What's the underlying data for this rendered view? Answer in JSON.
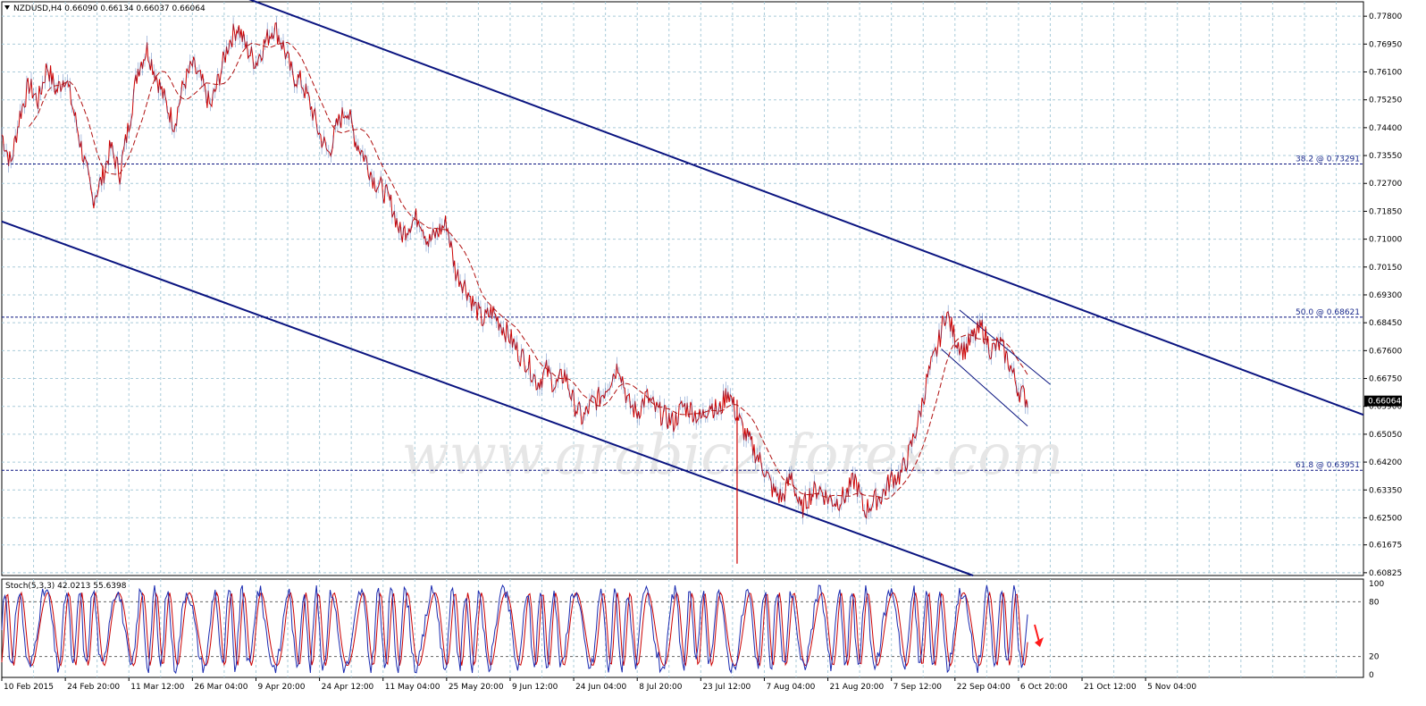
{
  "chart_data": {
    "type": "line",
    "symbol": "NZDUSD",
    "timeframe": "H4",
    "ohlc_header": "NZDUSD,H4  0.66090 0.66134 0.66037 0.66064",
    "current_price": "0.66064",
    "watermark": "www.arabic2.forex.com",
    "ylim": [
      0.6074,
      0.7824
    ],
    "y_ticks": [
      "0.77800",
      "0.76950",
      "0.76100",
      "0.75250",
      "0.74400",
      "0.73550",
      "0.72700",
      "0.71850",
      "0.71000",
      "0.70150",
      "0.69300",
      "0.68450",
      "0.67600",
      "0.66750",
      "0.65900",
      "0.65050",
      "0.64200",
      "0.63350",
      "0.62500",
      "0.61675",
      "0.60825"
    ],
    "x_ticks": [
      "10 Feb 2015",
      "24 Feb 20:00",
      "11 Mar 12:00",
      "26 Mar 04:00",
      "9 Apr 20:00",
      "24 Apr 12:00",
      "11 May 04:00",
      "25 May 20:00",
      "9 Jun 12:00",
      "24 Jun 04:00",
      "8 Jul 20:00",
      "23 Jul 12:00",
      "7 Aug 04:00",
      "21 Aug 20:00",
      "7 Sep 12:00",
      "22 Sep 04:00",
      "6 Oct 20:00",
      "21 Oct 12:00",
      "5 Nov 04:00"
    ],
    "fib_levels": [
      {
        "label": "38.2 @ 0.73291",
        "value": 0.73291
      },
      {
        "label": "50.0 @ 0.68621",
        "value": 0.68621
      },
      {
        "label": "61.8 @ 0.63951",
        "value": 0.63951
      }
    ],
    "price_series": [
      [
        0,
        0.742
      ],
      [
        2,
        0.733
      ],
      [
        4,
        0.748
      ],
      [
        6,
        0.757
      ],
      [
        8,
        0.752
      ],
      [
        10,
        0.763
      ],
      [
        12,
        0.755
      ],
      [
        14,
        0.76
      ],
      [
        16,
        0.748
      ],
      [
        18,
        0.735
      ],
      [
        20,
        0.722
      ],
      [
        22,
        0.728
      ],
      [
        24,
        0.738
      ],
      [
        26,
        0.73
      ],
      [
        28,
        0.745
      ],
      [
        30,
        0.762
      ],
      [
        32,
        0.768
      ],
      [
        34,
        0.76
      ],
      [
        36,
        0.752
      ],
      [
        38,
        0.745
      ],
      [
        40,
        0.757
      ],
      [
        42,
        0.763
      ],
      [
        44,
        0.758
      ],
      [
        46,
        0.75
      ],
      [
        48,
        0.76
      ],
      [
        50,
        0.77
      ],
      [
        52,
        0.775
      ],
      [
        54,
        0.768
      ],
      [
        56,
        0.764
      ],
      [
        58,
        0.77
      ],
      [
        60,
        0.775
      ],
      [
        62,
        0.769
      ],
      [
        64,
        0.76
      ],
      [
        66,
        0.758
      ],
      [
        68,
        0.751
      ],
      [
        70,
        0.742
      ],
      [
        72,
        0.736
      ],
      [
        74,
        0.745
      ],
      [
        76,
        0.75
      ],
      [
        78,
        0.74
      ],
      [
        80,
        0.735
      ],
      [
        82,
        0.728
      ],
      [
        84,
        0.725
      ],
      [
        86,
        0.72
      ],
      [
        88,
        0.711
      ],
      [
        90,
        0.715
      ],
      [
        92,
        0.717
      ],
      [
        94,
        0.709
      ],
      [
        96,
        0.712
      ],
      [
        98,
        0.715
      ],
      [
        100,
        0.7
      ],
      [
        102,
        0.696
      ],
      [
        104,
        0.69
      ],
      [
        106,
        0.685
      ],
      [
        108,
        0.688
      ],
      [
        110,
        0.684
      ],
      [
        112,
        0.68
      ],
      [
        114,
        0.675
      ],
      [
        116,
        0.672
      ],
      [
        118,
        0.666
      ],
      [
        120,
        0.67
      ],
      [
        122,
        0.665
      ],
      [
        124,
        0.669
      ],
      [
        126,
        0.66
      ],
      [
        128,
        0.655
      ],
      [
        130,
        0.66
      ],
      [
        132,
        0.662
      ],
      [
        134,
        0.667
      ],
      [
        136,
        0.672
      ],
      [
        138,
        0.66
      ],
      [
        140,
        0.657
      ],
      [
        142,
        0.662
      ],
      [
        144,
        0.658
      ],
      [
        146,
        0.656
      ],
      [
        148,
        0.654
      ],
      [
        150,
        0.659
      ],
      [
        152,
        0.658
      ],
      [
        154,
        0.655
      ],
      [
        156,
        0.66
      ],
      [
        158,
        0.657
      ],
      [
        160,
        0.664
      ],
      [
        162,
        0.656
      ],
      [
        164,
        0.65
      ],
      [
        166,
        0.645
      ],
      [
        168,
        0.64
      ],
      [
        170,
        0.633
      ],
      [
        172,
        0.631
      ],
      [
        174,
        0.638
      ],
      [
        176,
        0.627
      ],
      [
        178,
        0.632
      ],
      [
        180,
        0.634
      ],
      [
        182,
        0.631
      ],
      [
        184,
        0.63
      ],
      [
        186,
        0.632
      ],
      [
        188,
        0.637
      ],
      [
        190,
        0.627
      ],
      [
        192,
        0.63
      ],
      [
        194,
        0.632
      ],
      [
        196,
        0.637
      ],
      [
        198,
        0.638
      ],
      [
        200,
        0.645
      ],
      [
        202,
        0.655
      ],
      [
        204,
        0.668
      ],
      [
        206,
        0.676
      ],
      [
        208,
        0.688
      ],
      [
        210,
        0.68
      ],
      [
        212,
        0.676
      ],
      [
        214,
        0.68
      ],
      [
        216,
        0.683
      ],
      [
        218,
        0.676
      ],
      [
        220,
        0.678
      ],
      [
        222,
        0.672
      ],
      [
        224,
        0.664
      ],
      [
        226,
        0.661
      ]
    ],
    "channel_lines": [
      {
        "p1": [
          50,
          0.7855
        ],
        "p2": [
          300,
          0.6564
        ]
      },
      {
        "p1": [
          0,
          0.7154
        ],
        "p2": [
          214,
          0.6074
        ]
      },
      {
        "p1": [
          211,
          0.6884
        ],
        "p2": [
          231,
          0.6657
        ]
      },
      {
        "p1": [
          207,
          0.6765
        ],
        "p2": [
          226,
          0.653
        ]
      }
    ],
    "n_bars": 300,
    "x_tick_bars": [
      0,
      14,
      28,
      42,
      56,
      70,
      84,
      98,
      112,
      126,
      140,
      154,
      168,
      182,
      196,
      210,
      224,
      238,
      252
    ],
    "stochastic": {
      "label": "Stoch(5,3,3) 42.0213 55.6398",
      "ylim": [
        0,
        100
      ],
      "levels": [
        20,
        80
      ],
      "y_ticks": [
        "100",
        "80",
        "20",
        "0"
      ],
      "main_color": "#1a2ab0",
      "signal_color": "#cc0000"
    },
    "colors": {
      "price": "#cc0000",
      "price_alt": "#2255aa",
      "ma": "#b01010",
      "channel": "#0a1480",
      "fib": "#0a1480",
      "grid": "#a9cbd9",
      "arrow": "#ff1a1a"
    }
  }
}
